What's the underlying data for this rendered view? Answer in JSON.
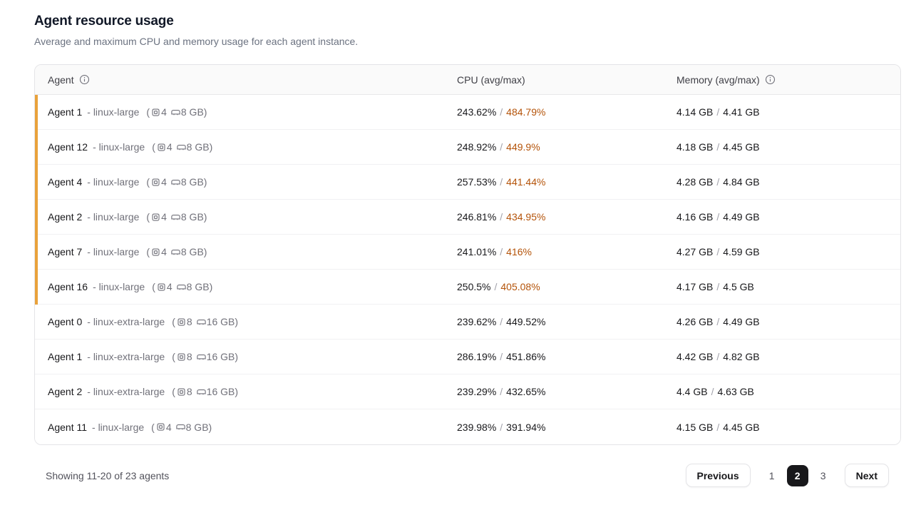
{
  "page": {
    "title": "Agent resource usage",
    "subtitle": "Average and maximum CPU and memory usage for each agent instance."
  },
  "table": {
    "columns": {
      "agent": "Agent",
      "cpu": "CPU (avg/max)",
      "memory": "Memory (avg/max)"
    },
    "value_separator": "/",
    "spec": {
      "open": "(",
      "close": ")"
    },
    "rows": [
      {
        "name": "Agent 1",
        "machine": "- linux-large",
        "cores": "4",
        "ram": "8 GB",
        "cpu_avg": "243.62%",
        "cpu_max": "484.79%",
        "mem_avg": "4.14 GB",
        "mem_max": "4.41 GB",
        "high_cpu": true
      },
      {
        "name": "Agent 12",
        "machine": "- linux-large",
        "cores": "4",
        "ram": "8 GB",
        "cpu_avg": "248.92%",
        "cpu_max": "449.9%",
        "mem_avg": "4.18 GB",
        "mem_max": "4.45 GB",
        "high_cpu": true
      },
      {
        "name": "Agent 4",
        "machine": "- linux-large",
        "cores": "4",
        "ram": "8 GB",
        "cpu_avg": "257.53%",
        "cpu_max": "441.44%",
        "mem_avg": "4.28 GB",
        "mem_max": "4.84 GB",
        "high_cpu": true
      },
      {
        "name": "Agent 2",
        "machine": "- linux-large",
        "cores": "4",
        "ram": "8 GB",
        "cpu_avg": "246.81%",
        "cpu_max": "434.95%",
        "mem_avg": "4.16 GB",
        "mem_max": "4.49 GB",
        "high_cpu": true
      },
      {
        "name": "Agent 7",
        "machine": "- linux-large",
        "cores": "4",
        "ram": "8 GB",
        "cpu_avg": "241.01%",
        "cpu_max": "416%",
        "mem_avg": "4.27 GB",
        "mem_max": "4.59 GB",
        "high_cpu": true
      },
      {
        "name": "Agent 16",
        "machine": "- linux-large",
        "cores": "4",
        "ram": "8 GB",
        "cpu_avg": "250.5%",
        "cpu_max": "405.08%",
        "mem_avg": "4.17 GB",
        "mem_max": "4.5 GB",
        "high_cpu": true
      },
      {
        "name": "Agent 0",
        "machine": "- linux-extra-large",
        "cores": "8",
        "ram": "16 GB",
        "cpu_avg": "239.62%",
        "cpu_max": "449.52%",
        "mem_avg": "4.26 GB",
        "mem_max": "4.49 GB",
        "high_cpu": false
      },
      {
        "name": "Agent 1",
        "machine": "- linux-extra-large",
        "cores": "8",
        "ram": "16 GB",
        "cpu_avg": "286.19%",
        "cpu_max": "451.86%",
        "mem_avg": "4.42 GB",
        "mem_max": "4.82 GB",
        "high_cpu": false
      },
      {
        "name": "Agent 2",
        "machine": "- linux-extra-large",
        "cores": "8",
        "ram": "16 GB",
        "cpu_avg": "239.29%",
        "cpu_max": "432.65%",
        "mem_avg": "4.4 GB",
        "mem_max": "4.63 GB",
        "high_cpu": false
      },
      {
        "name": "Agent 11",
        "machine": "- linux-large",
        "cores": "4",
        "ram": "8 GB",
        "cpu_avg": "239.98%",
        "cpu_max": "391.94%",
        "mem_avg": "4.15 GB",
        "mem_max": "4.45 GB",
        "high_cpu": false
      }
    ]
  },
  "footer": {
    "summary": "Showing 11-20 of 23 agents",
    "previous_label": "Previous",
    "next_label": "Next",
    "pages": [
      "1",
      "2",
      "3"
    ],
    "active_page": "2"
  },
  "icons": {
    "agent_header": "info-icon",
    "memory_header": "info-icon",
    "cores": "cpu-chip-icon",
    "ram": "memory-stick-icon"
  },
  "colors": {
    "high_cpu_text": "#B45309",
    "high_cpu_bar": "#E9A23B",
    "active_page_bg": "#18181b",
    "header_bg": "#fafafa",
    "border": "#e4e4e7"
  }
}
